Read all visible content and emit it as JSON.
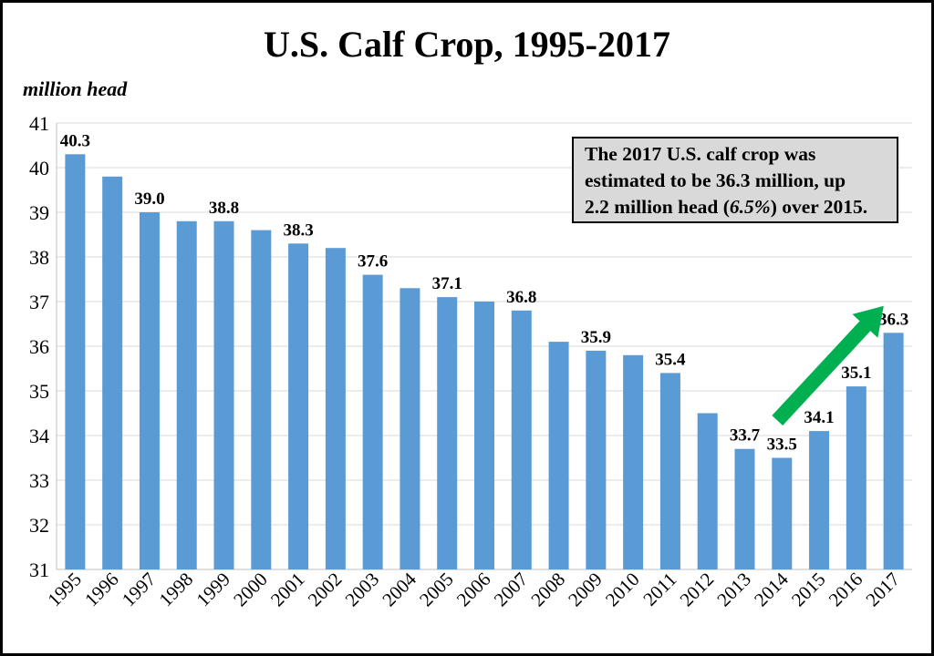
{
  "chart_data": {
    "type": "bar",
    "title": "U.S. Calf Crop, 1995-2017",
    "ylabel": "million head",
    "xlabel": "",
    "ylim": [
      31,
      41
    ],
    "yticks": [
      31,
      32,
      33,
      34,
      35,
      36,
      37,
      38,
      39,
      40,
      41
    ],
    "grid": true,
    "categories": [
      "1995",
      "1996",
      "1997",
      "1998",
      "1999",
      "2000",
      "2001",
      "2002",
      "2003",
      "2004",
      "2005",
      "2006",
      "2007",
      "2008",
      "2009",
      "2010",
      "2011",
      "2012",
      "2013",
      "2014",
      "2015",
      "2016",
      "2017"
    ],
    "values": [
      40.3,
      39.8,
      39.0,
      38.8,
      38.8,
      38.6,
      38.3,
      38.2,
      37.6,
      37.3,
      37.1,
      37.0,
      36.8,
      36.1,
      35.9,
      35.8,
      35.4,
      34.5,
      33.7,
      33.5,
      34.1,
      35.1,
      36.3
    ],
    "data_labels": [
      "40.3",
      null,
      "39.0",
      null,
      "38.8",
      null,
      "38.3",
      null,
      "37.6",
      null,
      "37.1",
      null,
      "36.8",
      null,
      "35.9",
      null,
      "35.4",
      null,
      "33.7",
      "33.5",
      "34.1",
      "35.1",
      "36.3"
    ],
    "bar_color": "#5b9bd5",
    "annotation": {
      "line1": "The 2017 U.S. calf crop was",
      "line2": "estimated to be 36.3 million, up",
      "line3a": "2.2 million head (",
      "line3b": "6.5%",
      "line3c": ") over 2015.",
      "box_color": "#d9d9d9"
    },
    "arrow": {
      "color": "#00b050",
      "direction": "up-right",
      "from_year": "2014",
      "to_year": "2016"
    }
  }
}
